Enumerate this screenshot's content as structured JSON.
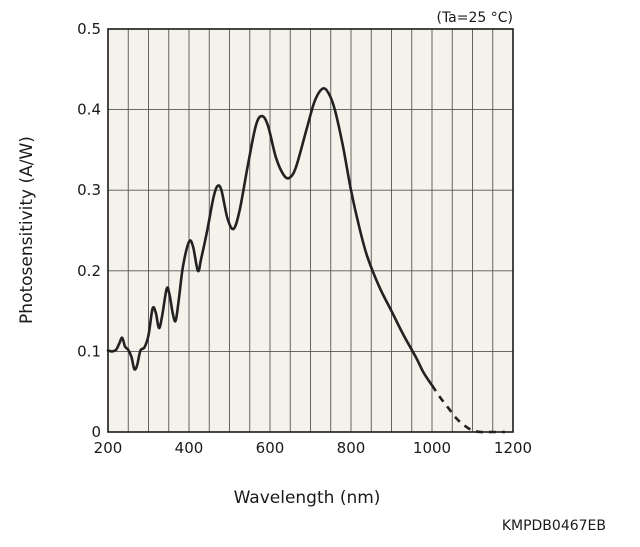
{
  "chart_data": {
    "type": "line",
    "condition": "(Ta=25 °C)",
    "xlabel": "Wavelength (nm)",
    "ylabel": "Photosensitivity (A/W)",
    "document_code": "KMPDB0467EB",
    "xlim": [
      200,
      1200
    ],
    "ylim": [
      0,
      0.5
    ],
    "x_ticks": [
      200,
      400,
      600,
      800,
      1000,
      1200
    ],
    "x_tick_labels": [
      "200",
      "400",
      "600",
      "800",
      "1000",
      "1200"
    ],
    "y_ticks": [
      0,
      0.1,
      0.2,
      0.3,
      0.4,
      0.5
    ],
    "y_tick_labels": [
      "0",
      "0.1",
      "0.2",
      "0.3",
      "0.4",
      "0.5"
    ],
    "x_grid_step": 50,
    "grid": true,
    "series": [
      {
        "style": "solid",
        "points": [
          [
            200,
            0.101
          ],
          [
            210,
            0.1
          ],
          [
            220,
            0.102
          ],
          [
            228,
            0.11
          ],
          [
            235,
            0.117
          ],
          [
            242,
            0.106
          ],
          [
            250,
            0.102
          ],
          [
            258,
            0.093
          ],
          [
            265,
            0.078
          ],
          [
            272,
            0.083
          ],
          [
            280,
            0.101
          ],
          [
            290,
            0.105
          ],
          [
            300,
            0.12
          ],
          [
            310,
            0.153
          ],
          [
            318,
            0.148
          ],
          [
            326,
            0.129
          ],
          [
            334,
            0.145
          ],
          [
            345,
            0.178
          ],
          [
            352,
            0.17
          ],
          [
            360,
            0.147
          ],
          [
            367,
            0.138
          ],
          [
            375,
            0.165
          ],
          [
            385,
            0.205
          ],
          [
            400,
            0.236
          ],
          [
            410,
            0.23
          ],
          [
            422,
            0.2
          ],
          [
            430,
            0.215
          ],
          [
            445,
            0.25
          ],
          [
            460,
            0.29
          ],
          [
            470,
            0.305
          ],
          [
            480,
            0.3
          ],
          [
            495,
            0.265
          ],
          [
            510,
            0.252
          ],
          [
            525,
            0.275
          ],
          [
            545,
            0.33
          ],
          [
            565,
            0.38
          ],
          [
            580,
            0.392
          ],
          [
            595,
            0.38
          ],
          [
            615,
            0.34
          ],
          [
            635,
            0.318
          ],
          [
            650,
            0.316
          ],
          [
            665,
            0.33
          ],
          [
            690,
            0.375
          ],
          [
            710,
            0.41
          ],
          [
            730,
            0.426
          ],
          [
            745,
            0.42
          ],
          [
            760,
            0.4
          ],
          [
            780,
            0.355
          ],
          [
            800,
            0.3
          ],
          [
            820,
            0.255
          ],
          [
            840,
            0.218
          ],
          [
            870,
            0.18
          ],
          [
            900,
            0.15
          ],
          [
            930,
            0.12
          ],
          [
            960,
            0.093
          ],
          [
            980,
            0.073
          ],
          [
            1000,
            0.058
          ]
        ]
      },
      {
        "style": "dashed",
        "points": [
          [
            1000,
            0.058
          ],
          [
            1020,
            0.043
          ],
          [
            1040,
            0.03
          ],
          [
            1060,
            0.017
          ],
          [
            1080,
            0.008
          ],
          [
            1100,
            0.002
          ],
          [
            1120,
            0.0
          ],
          [
            1150,
            0.0
          ],
          [
            1180,
            0.0
          ]
        ]
      }
    ]
  }
}
